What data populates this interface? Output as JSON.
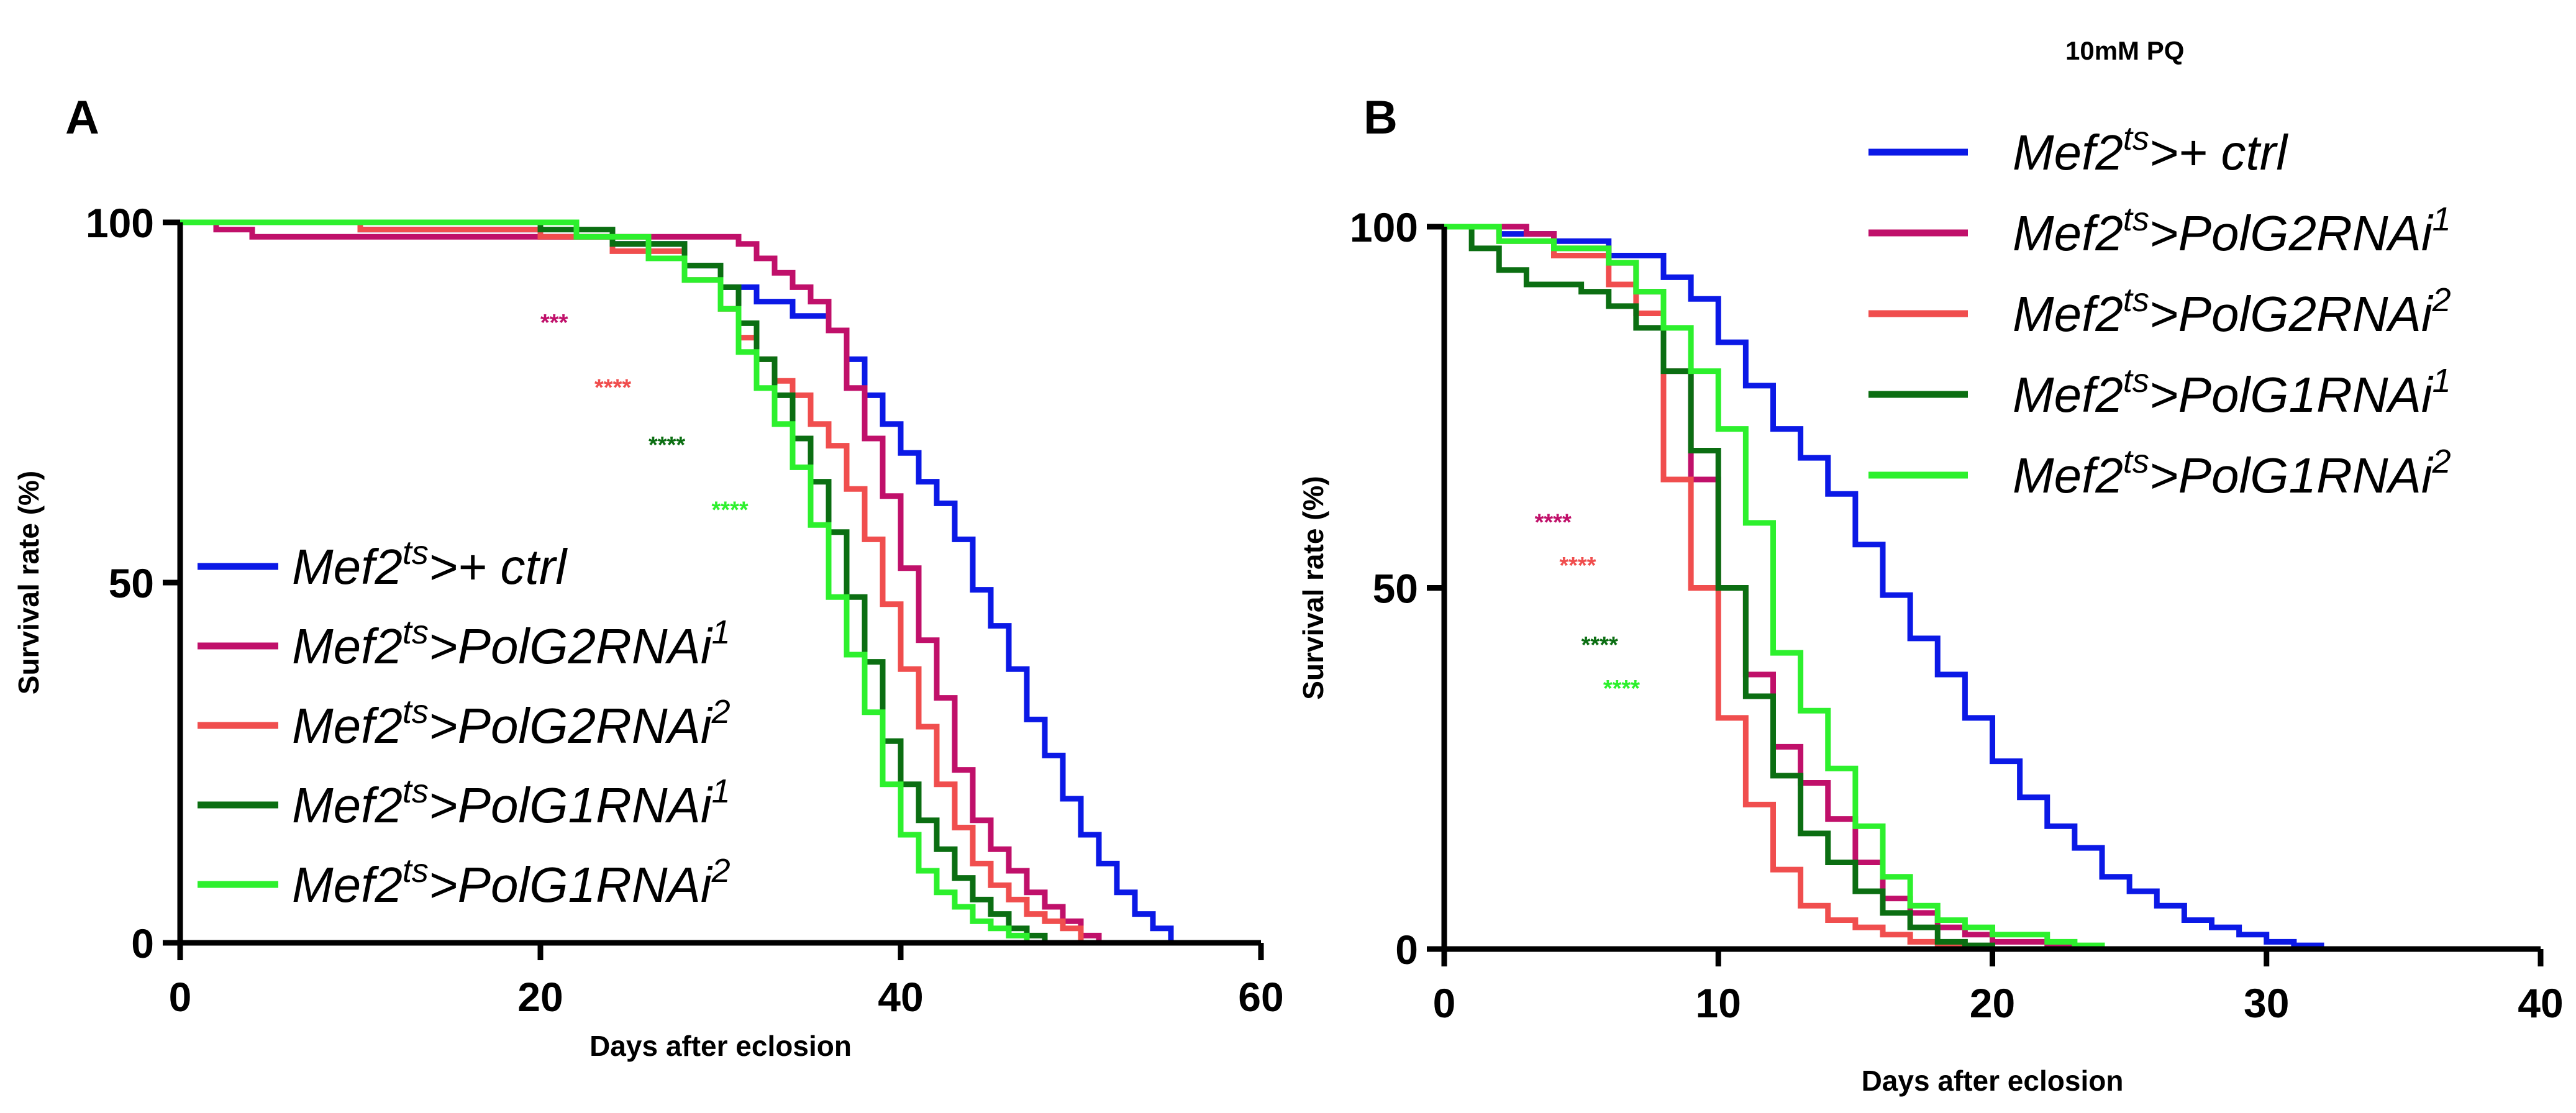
{
  "colors": {
    "ctrl": "#0b19e6",
    "polg2_1": "#c0106a",
    "polg2_2": "#f04e4e",
    "polg1_1": "#0b6e12",
    "polg1_2": "#2df02d"
  },
  "chart_data": [
    {
      "type": "line",
      "panel": "A",
      "title": "",
      "xlabel": "Days after eclosion",
      "ylabel": "Survival rate (%)",
      "xlim": [
        0,
        60
      ],
      "ylim": [
        0,
        100
      ],
      "xticks": [
        0,
        20,
        40,
        60
      ],
      "yticks": [
        0,
        50,
        100
      ],
      "legend_position": "left-middle",
      "series": [
        {
          "name": "ctrl",
          "color_key": "ctrl",
          "label_main": "Mef2",
          "label_sup": "ts",
          "label_rest": ">+ ctrl",
          "points": [
            [
              0,
              100
            ],
            [
              2,
              100
            ],
            [
              10,
              99
            ],
            [
              20,
              98
            ],
            [
              24,
              97
            ],
            [
              28,
              94
            ],
            [
              30,
              91
            ],
            [
              32,
              89
            ],
            [
              34,
              87
            ],
            [
              36,
              85
            ],
            [
              37,
              81
            ],
            [
              38,
              76
            ],
            [
              39,
              72
            ],
            [
              40,
              68
            ],
            [
              41,
              64
            ],
            [
              42,
              61
            ],
            [
              43,
              56
            ],
            [
              44,
              49
            ],
            [
              45,
              44
            ],
            [
              46,
              38
            ],
            [
              47,
              31
            ],
            [
              48,
              26
            ],
            [
              49,
              20
            ],
            [
              50,
              15
            ],
            [
              51,
              11
            ],
            [
              52,
              7
            ],
            [
              53,
              4
            ],
            [
              54,
              2
            ],
            [
              55,
              0
            ]
          ]
        },
        {
          "name": "PolG2RNAi1",
          "color_key": "polg2_1",
          "label_main": "Mef2",
          "label_sup": "ts",
          "label_rest": ">PolG2RNAi",
          "label_sup2": "1",
          "points": [
            [
              0,
              100
            ],
            [
              2,
              99
            ],
            [
              4,
              98
            ],
            [
              30,
              98
            ],
            [
              31,
              97
            ],
            [
              32,
              95
            ],
            [
              33,
              93
            ],
            [
              34,
              91
            ],
            [
              35,
              89
            ],
            [
              36,
              85
            ],
            [
              37,
              77
            ],
            [
              38,
              70
            ],
            [
              39,
              62
            ],
            [
              40,
              52
            ],
            [
              41,
              42
            ],
            [
              42,
              34
            ],
            [
              43,
              24
            ],
            [
              44,
              17
            ],
            [
              45,
              13
            ],
            [
              46,
              10
            ],
            [
              47,
              7
            ],
            [
              48,
              5
            ],
            [
              49,
              3
            ],
            [
              50,
              1
            ],
            [
              51,
              0
            ]
          ]
        },
        {
          "name": "PolG2RNAi2",
          "color_key": "polg2_2",
          "label_main": "Mef2",
          "label_sup": "ts",
          "label_rest": ">PolG2RNAi",
          "label_sup2": "2",
          "points": [
            [
              0,
              100
            ],
            [
              10,
              99
            ],
            [
              20,
              98
            ],
            [
              24,
              96
            ],
            [
              28,
              92
            ],
            [
              30,
              88
            ],
            [
              31,
              84
            ],
            [
              32,
              81
            ],
            [
              33,
              78
            ],
            [
              34,
              76
            ],
            [
              35,
              72
            ],
            [
              36,
              69
            ],
            [
              37,
              63
            ],
            [
              38,
              56
            ],
            [
              39,
              47
            ],
            [
              40,
              38
            ],
            [
              41,
              30
            ],
            [
              42,
              22
            ],
            [
              43,
              16
            ],
            [
              44,
              11
            ],
            [
              45,
              8
            ],
            [
              46,
              6
            ],
            [
              47,
              4
            ],
            [
              48,
              3
            ],
            [
              49,
              2
            ],
            [
              50,
              0
            ]
          ]
        },
        {
          "name": "PolG1RNAi1",
          "color_key": "polg1_1",
          "label_main": "Mef2",
          "label_sup": "ts",
          "label_rest": ">PolG1RNAi",
          "label_sup2": "1",
          "points": [
            [
              0,
              100
            ],
            [
              20,
              99
            ],
            [
              24,
              97
            ],
            [
              28,
              94
            ],
            [
              30,
              91
            ],
            [
              31,
              86
            ],
            [
              32,
              81
            ],
            [
              33,
              76
            ],
            [
              34,
              70
            ],
            [
              35,
              64
            ],
            [
              36,
              57
            ],
            [
              37,
              48
            ],
            [
              38,
              39
            ],
            [
              39,
              28
            ],
            [
              40,
              22
            ],
            [
              41,
              17
            ],
            [
              42,
              13
            ],
            [
              43,
              9
            ],
            [
              44,
              6
            ],
            [
              45,
              4
            ],
            [
              46,
              2
            ],
            [
              47,
              1
            ],
            [
              48,
              0
            ]
          ]
        },
        {
          "name": "PolG1RNAi2",
          "color_key": "polg1_2",
          "label_main": "Mef2",
          "label_sup": "ts",
          "label_rest": ">PolG1RNAi",
          "label_sup2": "2",
          "points": [
            [
              0,
              100
            ],
            [
              15,
              100
            ],
            [
              22,
              98
            ],
            [
              26,
              95
            ],
            [
              28,
              92
            ],
            [
              30,
              88
            ],
            [
              31,
              82
            ],
            [
              32,
              77
            ],
            [
              33,
              72
            ],
            [
              34,
              66
            ],
            [
              35,
              58
            ],
            [
              36,
              48
            ],
            [
              37,
              40
            ],
            [
              38,
              32
            ],
            [
              39,
              22
            ],
            [
              40,
              15
            ],
            [
              41,
              10
            ],
            [
              42,
              7
            ],
            [
              43,
              5
            ],
            [
              44,
              3
            ],
            [
              45,
              2
            ],
            [
              46,
              1
            ],
            [
              47,
              0
            ]
          ]
        }
      ],
      "annotations": [
        {
          "text": "***",
          "color_key": "polg2_1",
          "x": 20,
          "y": 85
        },
        {
          "text": "****",
          "color_key": "polg2_2",
          "x": 23,
          "y": 76
        },
        {
          "text": "****",
          "color_key": "polg1_1",
          "x": 26,
          "y": 68
        },
        {
          "text": "****",
          "color_key": "polg1_2",
          "x": 29.5,
          "y": 59
        }
      ]
    },
    {
      "type": "line",
      "panel": "B",
      "title": "10mM PQ",
      "xlabel": "Days after eclosion",
      "ylabel": "Survival rate (%)",
      "xlim": [
        0,
        40
      ],
      "ylim": [
        0,
        100
      ],
      "xticks": [
        0,
        10,
        20,
        30,
        40
      ],
      "yticks": [
        0,
        50,
        100
      ],
      "legend_position": "top-right",
      "series": [
        {
          "name": "ctrl",
          "color_key": "ctrl",
          "label_main": "Mef2",
          "label_sup": "ts",
          "label_rest": ">+ ctrl",
          "points": [
            [
              0,
              100
            ],
            [
              2,
              99
            ],
            [
              4,
              98
            ],
            [
              6,
              96
            ],
            [
              8,
              93
            ],
            [
              9,
              90
            ],
            [
              10,
              84
            ],
            [
              11,
              78
            ],
            [
              12,
              72
            ],
            [
              13,
              68
            ],
            [
              14,
              63
            ],
            [
              15,
              56
            ],
            [
              16,
              49
            ],
            [
              17,
              43
            ],
            [
              18,
              38
            ],
            [
              19,
              32
            ],
            [
              20,
              26
            ],
            [
              21,
              21
            ],
            [
              22,
              17
            ],
            [
              23,
              14
            ],
            [
              24,
              10
            ],
            [
              25,
              8
            ],
            [
              26,
              6
            ],
            [
              27,
              4
            ],
            [
              28,
              3
            ],
            [
              29,
              2
            ],
            [
              30,
              1
            ],
            [
              31,
              0.5
            ],
            [
              32,
              0
            ]
          ]
        },
        {
          "name": "PolG2RNAi1",
          "color_key": "polg2_1",
          "label_main": "Mef2",
          "label_sup": "ts",
          "label_rest": ">PolG2RNAi",
          "label_sup2": "1",
          "points": [
            [
              0,
              100
            ],
            [
              3,
              99
            ],
            [
              4,
              97
            ],
            [
              6,
              95
            ],
            [
              7,
              91
            ],
            [
              8,
              80
            ],
            [
              9,
              65
            ],
            [
              10,
              50
            ],
            [
              11,
              38
            ],
            [
              12,
              28
            ],
            [
              13,
              23
            ],
            [
              14,
              18
            ],
            [
              15,
              12
            ],
            [
              16,
              7
            ],
            [
              17,
              5
            ],
            [
              18,
              3
            ],
            [
              19,
              2
            ],
            [
              20,
              1
            ],
            [
              22,
              0.5
            ],
            [
              23,
              0
            ]
          ]
        },
        {
          "name": "PolG2RNAi2",
          "color_key": "polg2_2",
          "label_main": "Mef2",
          "label_sup": "ts",
          "label_rest": ">PolG2RNAi",
          "label_sup2": "2",
          "points": [
            [
              0,
              100
            ],
            [
              2,
              98
            ],
            [
              4,
              96
            ],
            [
              6,
              92
            ],
            [
              7,
              88
            ],
            [
              8,
              65
            ],
            [
              9,
              50
            ],
            [
              10,
              32
            ],
            [
              11,
              20
            ],
            [
              12,
              11
            ],
            [
              13,
              6
            ],
            [
              14,
              4
            ],
            [
              15,
              3
            ],
            [
              16,
              2
            ],
            [
              17,
              1
            ],
            [
              18,
              0.5
            ],
            [
              19,
              0
            ]
          ]
        },
        {
          "name": "PolG1RNAi1",
          "color_key": "polg1_1",
          "label_main": "Mef2",
          "label_sup": "ts",
          "label_rest": ">PolG1RNAi",
          "label_sup2": "1",
          "points": [
            [
              0,
              100
            ],
            [
              1,
              97
            ],
            [
              2,
              94
            ],
            [
              3,
              92
            ],
            [
              5,
              91
            ],
            [
              6,
              89
            ],
            [
              7,
              86
            ],
            [
              8,
              80
            ],
            [
              9,
              69
            ],
            [
              10,
              50
            ],
            [
              11,
              35
            ],
            [
              12,
              24
            ],
            [
              13,
              16
            ],
            [
              14,
              12
            ],
            [
              15,
              8
            ],
            [
              16,
              5
            ],
            [
              17,
              3
            ],
            [
              18,
              1
            ],
            [
              19,
              0.5
            ],
            [
              20,
              0
            ]
          ]
        },
        {
          "name": "PolG1RNAi2",
          "color_key": "polg1_2",
          "label_main": "Mef2",
          "label_sup": "ts",
          "label_rest": ">PolG1RNAi",
          "label_sup2": "2",
          "points": [
            [
              0,
              100
            ],
            [
              2,
              98
            ],
            [
              4,
              97
            ],
            [
              6,
              95
            ],
            [
              7,
              91
            ],
            [
              8,
              86
            ],
            [
              9,
              80
            ],
            [
              10,
              72
            ],
            [
              11,
              59
            ],
            [
              12,
              41
            ],
            [
              13,
              33
            ],
            [
              14,
              25
            ],
            [
              15,
              17
            ],
            [
              16,
              10
            ],
            [
              17,
              6
            ],
            [
              18,
              4
            ],
            [
              19,
              3
            ],
            [
              20,
              2
            ],
            [
              22,
              1
            ],
            [
              23,
              0.5
            ],
            [
              24,
              0
            ]
          ]
        }
      ],
      "annotations": [
        {
          "text": "****",
          "color_key": "polg2_1",
          "x": 3.3,
          "y": 58
        },
        {
          "text": "****",
          "color_key": "polg2_2",
          "x": 4.2,
          "y": 52
        },
        {
          "text": "****",
          "color_key": "polg1_1",
          "x": 5,
          "y": 41
        },
        {
          "text": "****",
          "color_key": "polg1_2",
          "x": 5.8,
          "y": 35
        }
      ]
    }
  ]
}
